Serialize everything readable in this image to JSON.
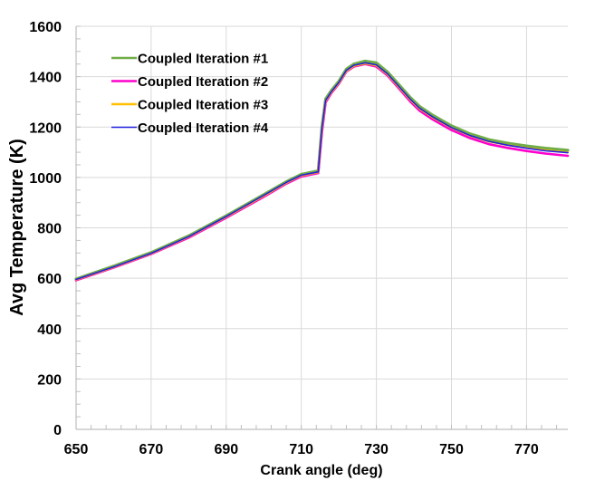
{
  "chart_data": {
    "type": "line",
    "title": "",
    "xlabel": "Crank angle (deg)",
    "ylabel": "Avg Temperature (K)",
    "xlim": [
      650,
      781
    ],
    "ylim": [
      0,
      1600
    ],
    "xticks": [
      650,
      670,
      690,
      710,
      730,
      750,
      770
    ],
    "yticks": [
      0,
      200,
      400,
      600,
      800,
      1000,
      1200,
      1400,
      1600
    ],
    "x_minor_step": 4,
    "y_minor_step": 50,
    "grid": true,
    "legend_position": "upper-left-inside",
    "x": [
      650,
      660,
      670,
      680,
      690,
      700,
      706,
      710,
      714.5,
      715.5,
      716.5,
      718,
      720,
      722,
      724,
      727,
      730,
      733,
      736,
      739,
      741.5,
      745,
      750,
      755,
      760,
      765,
      770,
      775,
      781
    ],
    "series": [
      {
        "name": "Coupled Iteration #1",
        "color": "#70AD47",
        "width": 3.2,
        "values": [
          597,
          648,
          702,
          768,
          848,
          932,
          983,
          1012,
          1026,
          1200,
          1312,
          1345,
          1382,
          1430,
          1450,
          1462,
          1455,
          1418,
          1368,
          1318,
          1282,
          1247,
          1205,
          1173,
          1150,
          1136,
          1125,
          1116,
          1108
        ]
      },
      {
        "name": "Coupled Iteration #2",
        "color": "#FF00CC",
        "width": 2.6,
        "values": [
          592,
          642,
          696,
          761,
          840,
          923,
          975,
          1004,
          1017,
          1180,
          1298,
          1335,
          1372,
          1420,
          1440,
          1450,
          1440,
          1404,
          1353,
          1302,
          1265,
          1230,
          1188,
          1156,
          1132,
          1117,
          1105,
          1095,
          1086
        ]
      },
      {
        "name": "Coupled Iteration #3",
        "color": "#FFC000",
        "width": 2.0,
        "values": [
          594,
          644,
          698,
          764,
          843,
          927,
          978,
          1007,
          1020,
          1190,
          1303,
          1338,
          1374,
          1422,
          1442,
          1452,
          1444,
          1408,
          1358,
          1308,
          1272,
          1238,
          1197,
          1165,
          1142,
          1128,
          1117,
          1108,
          1100
        ]
      },
      {
        "name": "Coupled Iteration #4",
        "color": "#2020E0",
        "width": 1.6,
        "values": [
          595,
          645,
          699,
          765,
          845,
          929,
          980,
          1009,
          1022,
          1195,
          1306,
          1340,
          1377,
          1425,
          1445,
          1455,
          1447,
          1411,
          1361,
          1311,
          1275,
          1240,
          1198,
          1166,
          1143,
          1128,
          1116,
          1106,
          1098
        ]
      }
    ]
  },
  "colors": {
    "grid": "#D9D9D9",
    "axis": "#BFBFBF",
    "background": "#FFFFFF"
  }
}
